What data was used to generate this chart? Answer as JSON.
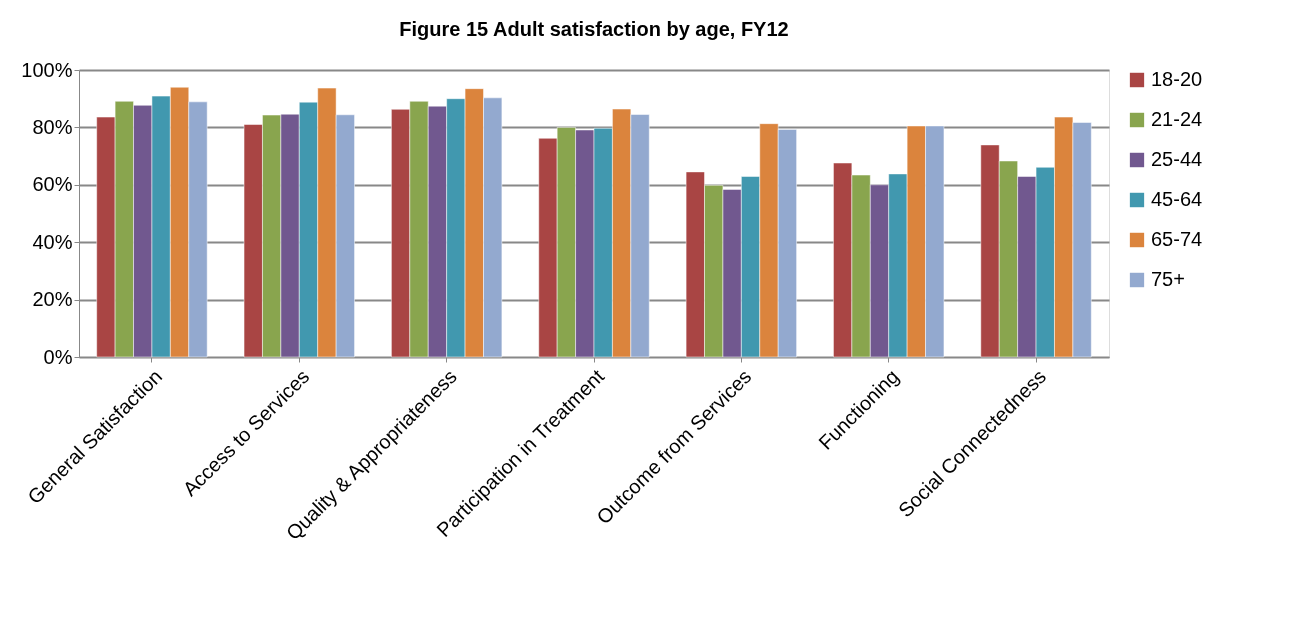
{
  "chart_data": {
    "type": "bar",
    "title": "Figure 15  Adult satisfaction by age, FY12",
    "categories": [
      "General Satisfaction",
      "Access to Services",
      "Quality & Appropriateness",
      "Participation in Treatment",
      "Outcome from Services",
      "Functioning",
      "Social Connectedness"
    ],
    "series": [
      {
        "name": "18-20",
        "color": "#a94544",
        "values": [
          83.6,
          81.0,
          86.3,
          76.2,
          64.5,
          67.6,
          73.9
        ]
      },
      {
        "name": "21-24",
        "color": "#89a54e",
        "values": [
          89.1,
          84.3,
          89.1,
          80.0,
          59.8,
          63.4,
          68.3
        ]
      },
      {
        "name": "25-44",
        "color": "#71588f",
        "values": [
          87.7,
          84.6,
          87.4,
          79.1,
          58.4,
          60.0,
          62.9
        ]
      },
      {
        "name": "45-64",
        "color": "#4198af",
        "values": [
          90.9,
          88.8,
          90.0,
          79.7,
          62.9,
          63.8,
          66.1
        ]
      },
      {
        "name": "65-74",
        "color": "#db843d",
        "values": [
          94.0,
          93.7,
          93.5,
          86.4,
          81.3,
          80.5,
          83.6
        ]
      },
      {
        "name": "75+",
        "color": "#93a9cf",
        "values": [
          88.9,
          84.4,
          90.3,
          84.5,
          79.3,
          80.5,
          81.7
        ]
      }
    ],
    "ylim": [
      0,
      100
    ],
    "yticks": [
      {
        "value": 0,
        "label": "0%"
      },
      {
        "value": 20,
        "label": "20%"
      },
      {
        "value": 40,
        "label": "40%"
      },
      {
        "value": 60,
        "label": "60%"
      },
      {
        "value": 80,
        "label": "80%"
      },
      {
        "value": 100,
        "label": "100%"
      }
    ],
    "grid": "y",
    "legend": "right"
  }
}
